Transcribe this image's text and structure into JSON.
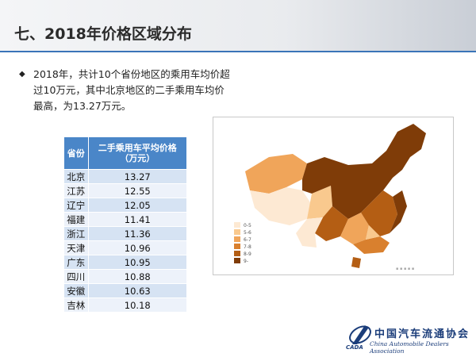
{
  "header": {
    "title": "七、2018年价格区域分布"
  },
  "bullet": {
    "text": "2018年，共计10个省份地区的乘用车均价超过10万元，其中北京地区的二手乘用车均价最高，为13.27万元。"
  },
  "table": {
    "header": [
      "省份",
      [
        "二手乘用车平均价格",
        "（万元）"
      ]
    ],
    "rows": [
      [
        "北京",
        13.27
      ],
      [
        "江苏",
        12.55
      ],
      [
        "辽宁",
        12.05
      ],
      [
        "福建",
        11.41
      ],
      [
        "浙江",
        11.36
      ],
      [
        "天津",
        10.96
      ],
      [
        "广东",
        10.95
      ],
      [
        "四川",
        10.88
      ],
      [
        "安徽",
        10.63
      ],
      [
        "吉林",
        10.18
      ]
    ]
  },
  "map": {
    "legend": [
      {
        "label": "0-5",
        "color": "#fde9d3"
      },
      {
        "label": "5-6",
        "color": "#f9c98e"
      },
      {
        "label": "6-7",
        "color": "#f0a55a"
      },
      {
        "label": "7-8",
        "color": "#d9802e"
      },
      {
        "label": "8-9",
        "color": "#b45e14"
      },
      {
        "label": "9-",
        "color": "#7f3c08"
      }
    ]
  },
  "footer": {
    "org": "中国汽车流通协会",
    "org_en": "China Automobile Dealers Association",
    "logo": "CADA"
  }
}
